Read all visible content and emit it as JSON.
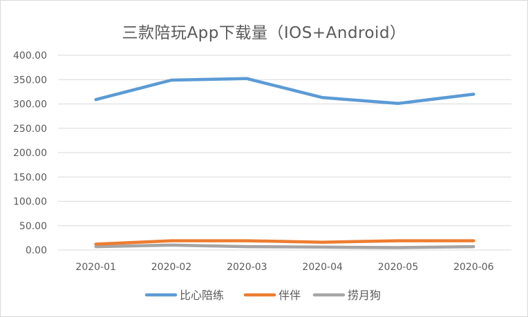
{
  "chart_data": {
    "type": "line",
    "title": "三款陪玩App下载量（IOS+Android）",
    "xlabel": "",
    "ylabel": "",
    "categories": [
      "2020-01",
      "2020-02",
      "2020-03",
      "2020-04",
      "2020-05",
      "2020-06"
    ],
    "y_tick_labels": [
      "0.00",
      "50.00",
      "100.00",
      "150.00",
      "200.00",
      "250.00",
      "300.00",
      "350.00",
      "400.00"
    ],
    "ylim": [
      0,
      400
    ],
    "grid": true,
    "legend_position": "bottom",
    "series": [
      {
        "name": "比心陪练",
        "color": "#5b9bd5",
        "values": [
          309,
          349,
          352,
          313,
          301,
          320
        ]
      },
      {
        "name": "伴伴",
        "color": "#ed7d31",
        "values": [
          12,
          19,
          19,
          16,
          19,
          19
        ]
      },
      {
        "name": "捞月狗",
        "color": "#a5a5a5",
        "values": [
          7,
          10,
          7,
          6,
          5,
          7
        ]
      }
    ]
  }
}
